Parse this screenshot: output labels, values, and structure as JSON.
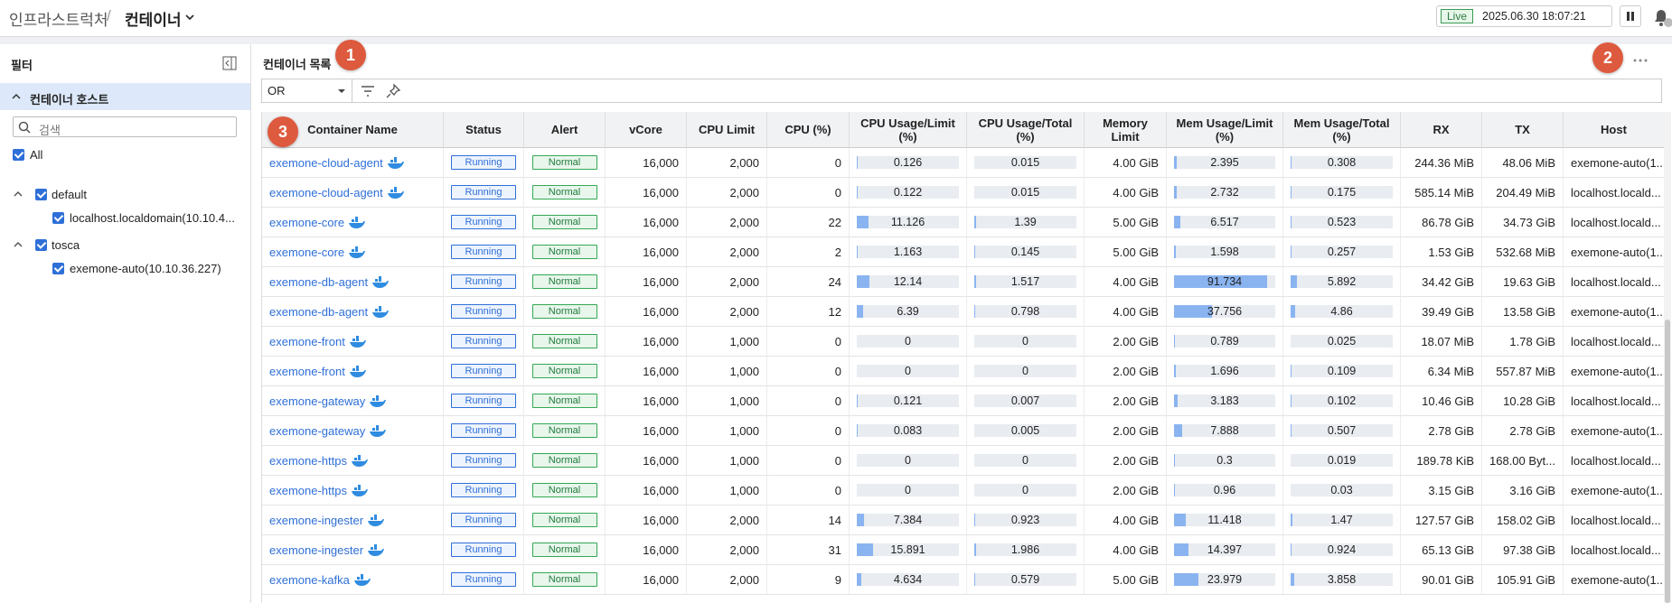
{
  "header": {
    "breadcrumb": "인프라스트럭처",
    "separator": "/",
    "current": "컨테이너",
    "live": "Live",
    "datetime": "2025.06.30 18:07:21"
  },
  "filter": {
    "title": "필터",
    "section": "컨테이너 호스트",
    "search_placeholder": "검색",
    "all": "All",
    "groups": [
      {
        "name": "default",
        "hosts": [
          "localhost.localdomain(10.10.4..."
        ]
      },
      {
        "name": "tosca",
        "hosts": [
          "exemone-auto(10.10.36.227)"
        ]
      }
    ]
  },
  "main": {
    "title": "컨테이너 목록",
    "operator": "OR"
  },
  "annotations": [
    "1",
    "2",
    "3"
  ],
  "table": {
    "columns": [
      "Container Name",
      "Status",
      "Alert",
      "vCore",
      "CPU Limit",
      "CPU (%)",
      "CPU Usage/Limit (%)",
      "CPU Usage/Total (%)",
      "Memory Limit",
      "Mem Usage/Limit (%)",
      "Mem Usage/Total (%)",
      "RX",
      "TX",
      "Host"
    ],
    "rows": [
      [
        "exemone-cloud-agent",
        "Running",
        "Normal",
        "16,000",
        "2,000",
        0,
        0.126,
        0.015,
        "4.00 GiB",
        2.395,
        0.308,
        "244.36 MiB",
        "48.06 MiB",
        "exemone-auto(1..."
      ],
      [
        "exemone-cloud-agent",
        "Running",
        "Normal",
        "16,000",
        "2,000",
        0,
        0.122,
        0.015,
        "4.00 GiB",
        2.732,
        0.175,
        "585.14 MiB",
        "204.49 MiB",
        "localhost.locald..."
      ],
      [
        "exemone-core",
        "Running",
        "Normal",
        "16,000",
        "2,000",
        22,
        11.126,
        1.39,
        "5.00 GiB",
        6.517,
        0.523,
        "86.78 GiB",
        "34.73 GiB",
        "localhost.locald..."
      ],
      [
        "exemone-core",
        "Running",
        "Normal",
        "16,000",
        "2,000",
        2,
        1.163,
        0.145,
        "5.00 GiB",
        1.598,
        0.257,
        "1.53 GiB",
        "532.68 MiB",
        "exemone-auto(1..."
      ],
      [
        "exemone-db-agent",
        "Running",
        "Normal",
        "16,000",
        "2,000",
        24,
        12.14,
        1.517,
        "4.00 GiB",
        91.734,
        5.892,
        "34.42 GiB",
        "19.63 GiB",
        "localhost.locald..."
      ],
      [
        "exemone-db-agent",
        "Running",
        "Normal",
        "16,000",
        "2,000",
        12,
        6.39,
        0.798,
        "4.00 GiB",
        37.756,
        4.86,
        "39.49 GiB",
        "13.58 GiB",
        "exemone-auto(1..."
      ],
      [
        "exemone-front",
        "Running",
        "Normal",
        "16,000",
        "1,000",
        0,
        0,
        0,
        "2.00 GiB",
        0.789,
        0.025,
        "18.07 MiB",
        "1.78 GiB",
        "localhost.locald..."
      ],
      [
        "exemone-front",
        "Running",
        "Normal",
        "16,000",
        "1,000",
        0,
        0,
        0,
        "2.00 GiB",
        1.696,
        0.109,
        "6.34 MiB",
        "557.87 MiB",
        "exemone-auto(1..."
      ],
      [
        "exemone-gateway",
        "Running",
        "Normal",
        "16,000",
        "1,000",
        0,
        0.121,
        0.007,
        "2.00 GiB",
        3.183,
        0.102,
        "10.46 GiB",
        "10.28 GiB",
        "localhost.locald..."
      ],
      [
        "exemone-gateway",
        "Running",
        "Normal",
        "16,000",
        "1,000",
        0,
        0.083,
        0.005,
        "2.00 GiB",
        7.888,
        0.507,
        "2.78 GiB",
        "2.78 GiB",
        "exemone-auto(1..."
      ],
      [
        "exemone-https",
        "Running",
        "Normal",
        "16,000",
        "1,000",
        0,
        0,
        0,
        "2.00 GiB",
        0.3,
        0.019,
        "189.78 KiB",
        "168.00 Byt...",
        "localhost.locald..."
      ],
      [
        "exemone-https",
        "Running",
        "Normal",
        "16,000",
        "1,000",
        0,
        0,
        0,
        "2.00 GiB",
        0.96,
        0.03,
        "3.15 GiB",
        "3.16 GiB",
        "exemone-auto(1..."
      ],
      [
        "exemone-ingester",
        "Running",
        "Normal",
        "16,000",
        "2,000",
        14,
        7.384,
        0.923,
        "4.00 GiB",
        11.418,
        1.47,
        "127.57 GiB",
        "158.02 GiB",
        "localhost.locald..."
      ],
      [
        "exemone-ingester",
        "Running",
        "Normal",
        "16,000",
        "2,000",
        31,
        15.891,
        1.986,
        "4.00 GiB",
        14.397,
        0.924,
        "65.13 GiB",
        "97.38 GiB",
        "localhost.locald..."
      ],
      [
        "exemone-kafka",
        "Running",
        "Normal",
        "16,000",
        "2,000",
        9,
        4.634,
        0.579,
        "5.00 GiB",
        23.979,
        3.858,
        "90.01 GiB",
        "105.91 GiB",
        "exemone-auto(1..."
      ]
    ]
  }
}
